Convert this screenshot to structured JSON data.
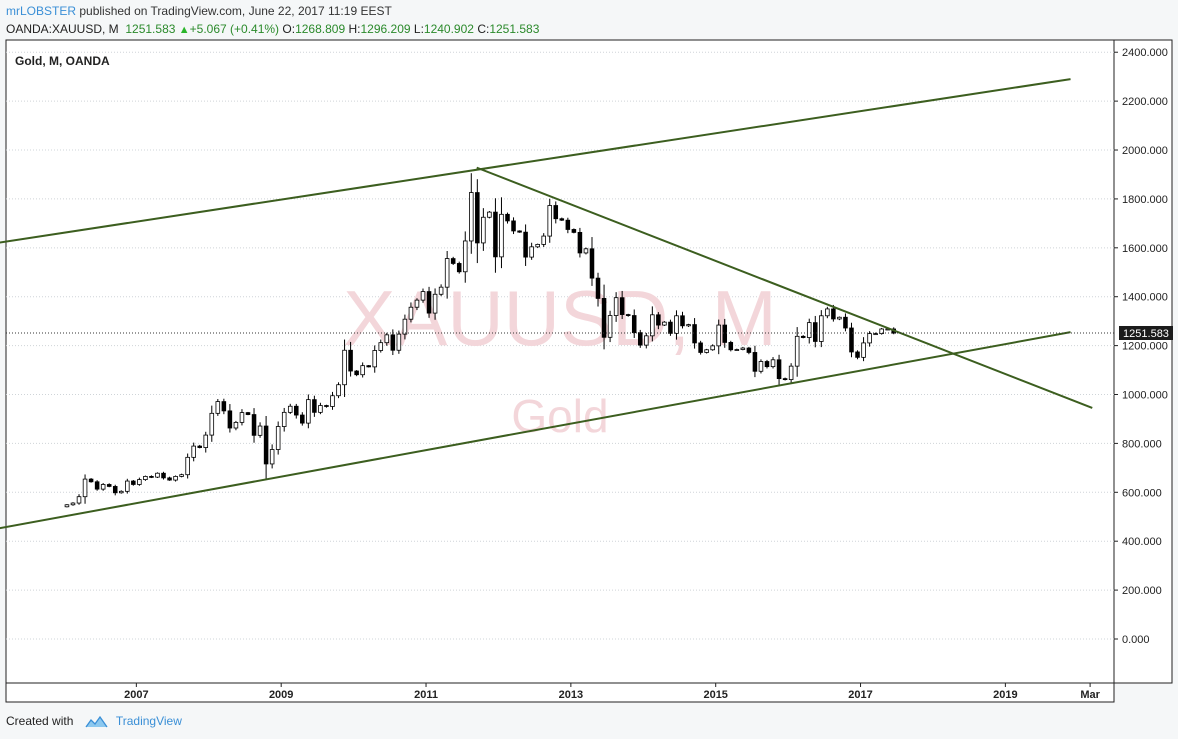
{
  "header": {
    "author": "mrLOBSTER",
    "published": "published on TradingView.com, June 22, 2017 11:19 EEST",
    "symbol": "OANDA:XAUUSD, M",
    "last": "1251.583",
    "change_arrow": "▲",
    "change": "+5.067 (+0.41%)",
    "o_label": "O:",
    "o_value": "1268.809",
    "h_label": "H:",
    "h_value": "1296.209",
    "l_label": "L:",
    "l_value": "1240.902",
    "c_label": "C:",
    "c_value": "1251.583"
  },
  "chart": {
    "legend": "Gold, M, OANDA",
    "watermark_symbol": "XAUUSD, M",
    "watermark_name": "Gold",
    "price_badge": "1251.583"
  },
  "footer": {
    "created_with": "Created with",
    "brand": "TradingView",
    "logo_icon": "tradingview-cloud-icon"
  },
  "colors": {
    "background": "#ffffff",
    "grid": "#cfd4d8",
    "trendline": "#3c5e1f",
    "watermark": "#f3d6da",
    "candle_up": "#ffffff",
    "candle_down": "#000000",
    "author_link": "#3a8fd6",
    "value_green": "#2b8a2b"
  },
  "chart_data": {
    "type": "candlestick",
    "title": "Gold, M, OANDA",
    "symbol": "OANDA:XAUUSD",
    "timeframe": "M",
    "ylim": [
      -180,
      2450
    ],
    "y_ticks": [
      "0.000",
      "200.000",
      "400.000",
      "600.000",
      "800.000",
      "1000.000",
      "1200.000",
      "1400.000",
      "1600.000",
      "1800.000",
      "2000.000",
      "2200.000",
      "2400.000"
    ],
    "y_tick_values": [
      0,
      200,
      400,
      600,
      800,
      1000,
      1200,
      1400,
      1600,
      1800,
      2000,
      2200,
      2400
    ],
    "x_ticks": [
      "2007",
      "2009",
      "2011",
      "2013",
      "2015",
      "2017",
      "2019",
      "Mar"
    ],
    "x_tick_dates": [
      2007.0,
      2009.0,
      2011.0,
      2013.0,
      2015.0,
      2017.0,
      2019.0,
      2020.17
    ],
    "xlim": [
      2005.2,
      2020.5
    ],
    "last_price": 1251.583,
    "monthly_close": {
      "start": 2006.0,
      "step_months": 1,
      "values": [
        549,
        556,
        582,
        654,
        643,
        613,
        632,
        624,
        598,
        604,
        646,
        632,
        652,
        665,
        662,
        678,
        659,
        650,
        665,
        672,
        743,
        789,
        783,
        834,
        923,
        971,
        933,
        863,
        886,
        926,
        918,
        833,
        871,
        716,
        775,
        869,
        927,
        952,
        916,
        883,
        979,
        927,
        955,
        951,
        995,
        1040,
        1181,
        1096,
        1081,
        1118,
        1113,
        1180,
        1212,
        1244,
        1181,
        1247,
        1308,
        1357,
        1386,
        1421,
        1333,
        1410,
        1439,
        1556,
        1536,
        1502,
        1628,
        1826,
        1620,
        1725,
        1746,
        1563,
        1737,
        1710,
        1669,
        1664,
        1562,
        1604,
        1614,
        1648,
        1773,
        1719,
        1713,
        1675,
        1663,
        1579,
        1596,
        1476,
        1393,
        1234,
        1323,
        1396,
        1327,
        1323,
        1253,
        1202,
        1240,
        1326,
        1284,
        1296,
        1250,
        1322,
        1281,
        1286,
        1211,
        1172,
        1183,
        1199,
        1284,
        1213,
        1183,
        1184,
        1190,
        1172,
        1095,
        1135,
        1114,
        1142,
        1065,
        1061,
        1116,
        1238,
        1233,
        1294,
        1217,
        1322,
        1350,
        1309,
        1316,
        1272,
        1174,
        1152,
        1211,
        1249,
        1249,
        1268,
        1268,
        1251
      ]
    },
    "trendlines": [
      {
        "from": [
          2004.9,
          1612
        ],
        "to": [
          2019.9,
          2290
        ]
      },
      {
        "from": [
          2004.5,
          420
        ],
        "to": [
          2019.9,
          1255
        ]
      },
      {
        "from": [
          2011.7,
          1928
        ],
        "to": [
          2020.2,
          945
        ]
      }
    ]
  }
}
